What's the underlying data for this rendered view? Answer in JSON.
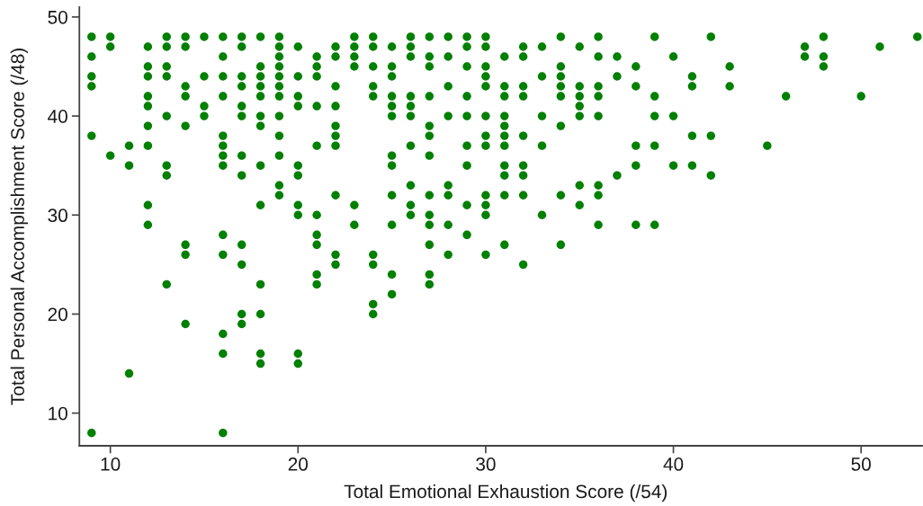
{
  "chart_data": {
    "type": "scatter",
    "xlabel": "Total Emotional Exhaustion Score (/54)",
    "ylabel": "Total Personal Accomplishment Score (/48)",
    "xlim": [
      8.35,
      53.25
    ],
    "ylim": [
      6.7,
      51
    ],
    "xticks": [
      10,
      20,
      30,
      40,
      50
    ],
    "yticks": [
      10,
      20,
      30,
      40,
      50
    ],
    "marker": "circle",
    "series": [
      {
        "color": "#008000",
        "x": [
          9,
          9,
          9,
          9,
          9,
          9,
          10,
          10,
          10,
          11,
          11,
          11,
          12,
          12,
          12,
          12,
          12,
          12,
          12,
          12,
          12,
          13,
          13,
          13,
          13,
          13,
          13,
          13,
          13,
          14,
          14,
          14,
          14,
          14,
          14,
          14,
          14,
          15,
          15,
          15,
          15,
          16,
          16,
          16,
          16,
          16,
          16,
          16,
          16,
          16,
          16,
          16,
          16,
          16,
          17,
          17,
          17,
          17,
          17,
          17,
          17,
          17,
          17,
          17,
          17,
          17,
          18,
          18,
          18,
          18,
          18,
          18,
          18,
          18,
          18,
          18,
          18,
          18,
          18,
          19,
          19,
          19,
          19,
          19,
          19,
          19,
          19,
          19,
          19,
          19,
          19,
          20,
          20,
          20,
          20,
          20,
          20,
          20,
          20,
          20,
          20,
          21,
          21,
          21,
          21,
          21,
          21,
          21,
          21,
          21,
          21,
          22,
          22,
          22,
          22,
          22,
          22,
          22,
          22,
          22,
          22,
          23,
          23,
          23,
          23,
          23,
          23,
          24,
          24,
          24,
          24,
          24,
          24,
          24,
          24,
          24,
          25,
          25,
          25,
          25,
          25,
          25,
          25,
          25,
          25,
          25,
          25,
          25,
          26,
          26,
          26,
          26,
          26,
          26,
          26,
          26,
          26,
          26,
          27,
          27,
          27,
          27,
          27,
          27,
          27,
          27,
          27,
          27,
          27,
          27,
          27,
          28,
          28,
          28,
          28,
          28,
          28,
          28,
          28,
          29,
          29,
          29,
          29,
          29,
          29,
          29,
          29,
          29,
          30,
          30,
          30,
          30,
          30,
          30,
          30,
          30,
          30,
          30,
          30,
          30,
          31,
          31,
          31,
          31,
          31,
          31,
          31,
          31,
          31,
          31,
          31,
          32,
          32,
          32,
          32,
          32,
          32,
          32,
          32,
          32,
          33,
          33,
          33,
          33,
          33,
          34,
          34,
          34,
          34,
          34,
          34,
          34,
          34,
          35,
          35,
          35,
          35,
          35,
          35,
          35,
          36,
          36,
          36,
          36,
          36,
          36,
          36,
          36,
          37,
          37,
          37,
          38,
          38,
          38,
          38,
          38,
          39,
          39,
          39,
          39,
          39,
          40,
          40,
          40,
          41,
          41,
          41,
          41,
          42,
          42,
          42,
          43,
          43,
          45,
          46,
          47,
          47,
          48,
          48,
          48,
          50,
          51,
          53
        ],
        "values": [
          48,
          46,
          44,
          43,
          38,
          8,
          48,
          47,
          36,
          37,
          35,
          14,
          47,
          45,
          44,
          42,
          41,
          39,
          37,
          31,
          29,
          48,
          47,
          45,
          44,
          40,
          35,
          34,
          23,
          48,
          47,
          43,
          42,
          39,
          27,
          26,
          19,
          48,
          44,
          41,
          40,
          48,
          46,
          44,
          42,
          38,
          37,
          36,
          35,
          28,
          26,
          18,
          16,
          8,
          48,
          47,
          44,
          43,
          41,
          40,
          36,
          34,
          27,
          25,
          20,
          19,
          48,
          45,
          44,
          43,
          42,
          40,
          39,
          35,
          31,
          23,
          20,
          16,
          15,
          48,
          47,
          46,
          45,
          44,
          43,
          42,
          40,
          38,
          36,
          33,
          32,
          47,
          44,
          42,
          41,
          35,
          34,
          31,
          30,
          16,
          15,
          46,
          45,
          44,
          41,
          37,
          30,
          28,
          27,
          24,
          23,
          47,
          46,
          43,
          41,
          39,
          38,
          37,
          32,
          26,
          25,
          48,
          47,
          46,
          45,
          31,
          29,
          48,
          47,
          45,
          43,
          42,
          26,
          25,
          21,
          20,
          47,
          45,
          44,
          42,
          41,
          40,
          36,
          35,
          32,
          29,
          24,
          22,
          48,
          47,
          46,
          42,
          41,
          40,
          37,
          33,
          31,
          30,
          48,
          46,
          45,
          42,
          39,
          38,
          36,
          32,
          30,
          29,
          27,
          24,
          23,
          48,
          46,
          43,
          40,
          33,
          32,
          29,
          26,
          48,
          47,
          45,
          42,
          40,
          37,
          35,
          31,
          28,
          48,
          47,
          45,
          44,
          43,
          40,
          38,
          37,
          32,
          31,
          30,
          26,
          46,
          43,
          42,
          40,
          39,
          38,
          37,
          35,
          34,
          32,
          27,
          47,
          46,
          43,
          42,
          38,
          35,
          34,
          32,
          25,
          47,
          44,
          40,
          37,
          30,
          48,
          45,
          44,
          43,
          42,
          39,
          32,
          27,
          47,
          43,
          42,
          41,
          40,
          33,
          31,
          48,
          46,
          43,
          42,
          40,
          33,
          32,
          29,
          46,
          44,
          34,
          45,
          43,
          37,
          35,
          29,
          48,
          42,
          40,
          37,
          29,
          46,
          40,
          35,
          44,
          43,
          38,
          35,
          48,
          38,
          34,
          45,
          43,
          37,
          42,
          47,
          46,
          48,
          46,
          45,
          42,
          47,
          48
        ]
      }
    ]
  }
}
